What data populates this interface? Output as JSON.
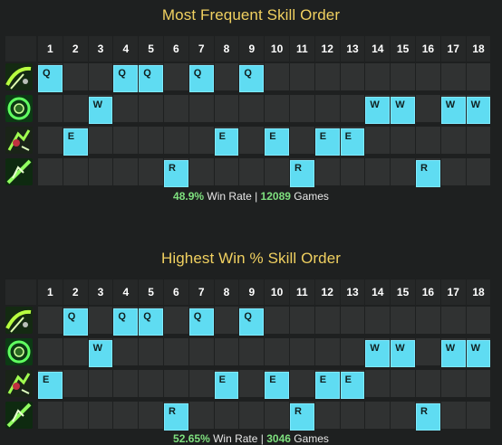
{
  "columns": [
    "1",
    "2",
    "3",
    "4",
    "5",
    "6",
    "7",
    "8",
    "9",
    "10",
    "11",
    "12",
    "13",
    "14",
    "15",
    "16",
    "17",
    "18"
  ],
  "sections": [
    {
      "title": "Most Frequent Skill Order",
      "rows": [
        {
          "key": "Q",
          "icon": "q-skill-icon",
          "levels": [
            1,
            4,
            5,
            7,
            9
          ]
        },
        {
          "key": "W",
          "icon": "w-skill-icon",
          "levels": [
            3,
            14,
            15,
            17,
            18
          ]
        },
        {
          "key": "E",
          "icon": "e-skill-icon",
          "levels": [
            2,
            8,
            10,
            12,
            13
          ]
        },
        {
          "key": "R",
          "icon": "r-skill-icon",
          "levels": [
            6,
            11,
            16
          ]
        }
      ],
      "win_rate": "48.9%",
      "win_rate_label": " Win Rate | ",
      "games": "12089",
      "games_label": " Games"
    },
    {
      "title": "Highest Win % Skill Order",
      "rows": [
        {
          "key": "Q",
          "icon": "q-skill-icon",
          "levels": [
            2,
            4,
            5,
            7,
            9
          ]
        },
        {
          "key": "W",
          "icon": "w-skill-icon",
          "levels": [
            3,
            14,
            15,
            17,
            18
          ]
        },
        {
          "key": "E",
          "icon": "e-skill-icon",
          "levels": [
            1,
            8,
            10,
            12,
            13
          ]
        },
        {
          "key": "R",
          "icon": "r-skill-icon",
          "levels": [
            6,
            11,
            16
          ]
        }
      ],
      "win_rate": "52.65%",
      "win_rate_label": " Win Rate | ",
      "games": "3046",
      "games_label": " Games"
    }
  ],
  "colors": {
    "title": "#f0d060",
    "pick": "#5fdcf2",
    "stat": "#7ee07e"
  }
}
